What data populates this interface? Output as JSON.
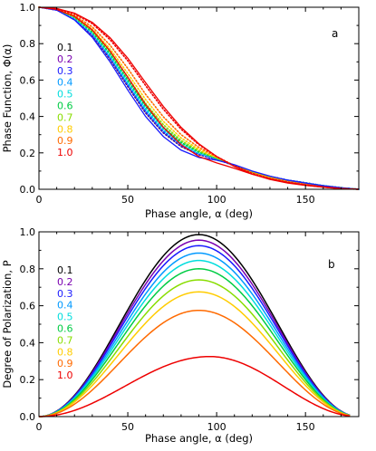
{
  "chart_data": [
    {
      "panel_letter": "a",
      "type": "line",
      "xlabel": "Phase angle, α (deg)",
      "ylabel": "Phase Function, Φ(α)",
      "xlim": [
        0,
        180
      ],
      "ylim": [
        0.0,
        1.0
      ],
      "xticks": [
        0,
        50,
        100,
        150
      ],
      "yticks": [
        0.0,
        0.2,
        0.4,
        0.6,
        0.8,
        1.0
      ],
      "ytick_labels": [
        "0.0",
        "0.2",
        "0.4",
        "0.6",
        "0.8",
        "1.0"
      ],
      "legend_placement": "left",
      "x": [
        0,
        10,
        20,
        30,
        40,
        50,
        60,
        70,
        80,
        90,
        100,
        110,
        120,
        130,
        140,
        150,
        160,
        170,
        180
      ],
      "series": [
        {
          "name": "0.1",
          "color": "#000000",
          "dotted_values": [
            1.0,
            0.985,
            0.935,
            0.845,
            0.715,
            0.565,
            0.42,
            0.31,
            0.235,
            0.19,
            0.165,
            0.13,
            0.095,
            0.07,
            0.05,
            0.035,
            0.02,
            0.008,
            0.0
          ]
        },
        {
          "name": "0.2",
          "color": "#7a00b0",
          "dotted_values": [
            1.0,
            0.985,
            0.936,
            0.847,
            0.718,
            0.568,
            0.423,
            0.312,
            0.237,
            0.191,
            0.165,
            0.13,
            0.095,
            0.07,
            0.05,
            0.035,
            0.02,
            0.008,
            0.0
          ]
        },
        {
          "name": "0.3",
          "color": "#1a1aff",
          "dotted_values": [
            1.0,
            0.986,
            0.937,
            0.85,
            0.722,
            0.573,
            0.428,
            0.316,
            0.24,
            0.193,
            0.166,
            0.13,
            0.095,
            0.07,
            0.05,
            0.035,
            0.02,
            0.008,
            0.0
          ]
        },
        {
          "name": "0.4",
          "color": "#0099ff",
          "dotted_values": [
            1.0,
            0.986,
            0.939,
            0.853,
            0.728,
            0.58,
            0.435,
            0.322,
            0.244,
            0.196,
            0.167,
            0.131,
            0.095,
            0.07,
            0.05,
            0.035,
            0.02,
            0.008,
            0.0
          ]
        },
        {
          "name": "0.5",
          "color": "#00dddd",
          "dotted_values": [
            1.0,
            0.987,
            0.941,
            0.858,
            0.735,
            0.588,
            0.444,
            0.33,
            0.25,
            0.2,
            0.168,
            0.131,
            0.095,
            0.069,
            0.049,
            0.034,
            0.02,
            0.008,
            0.0
          ]
        },
        {
          "name": "0.6",
          "color": "#00cc44",
          "dotted_values": [
            1.0,
            0.987,
            0.944,
            0.864,
            0.745,
            0.6,
            0.456,
            0.341,
            0.258,
            0.205,
            0.17,
            0.131,
            0.094,
            0.068,
            0.048,
            0.033,
            0.019,
            0.007,
            0.0
          ]
        },
        {
          "name": "0.7",
          "color": "#88dd00",
          "dotted_values": [
            1.0,
            0.988,
            0.947,
            0.872,
            0.757,
            0.616,
            0.472,
            0.355,
            0.268,
            0.211,
            0.172,
            0.131,
            0.093,
            0.067,
            0.047,
            0.032,
            0.018,
            0.007,
            0.0
          ]
        },
        {
          "name": "0.8",
          "color": "#ffcc00",
          "dotted_values": [
            1.0,
            0.989,
            0.951,
            0.88,
            0.772,
            0.636,
            0.493,
            0.373,
            0.282,
            0.219,
            0.175,
            0.131,
            0.092,
            0.065,
            0.045,
            0.03,
            0.017,
            0.006,
            0.0
          ]
        },
        {
          "name": "0.9",
          "color": "#ff6a00",
          "dotted_values": [
            1.0,
            0.99,
            0.956,
            0.892,
            0.792,
            0.664,
            0.522,
            0.398,
            0.3,
            0.23,
            0.178,
            0.13,
            0.09,
            0.062,
            0.042,
            0.028,
            0.015,
            0.005,
            0.0
          ]
        },
        {
          "name": "1.0",
          "color": "#ee0000",
          "dotted_values": [
            1.0,
            0.992,
            0.964,
            0.91,
            0.822,
            0.706,
            0.57,
            0.44,
            0.33,
            0.245,
            0.18,
            0.128,
            0.086,
            0.057,
            0.037,
            0.023,
            0.012,
            0.004,
            0.0
          ]
        }
      ],
      "solid_curves": [
        {
          "color": "#1a1aff",
          "values": [
            1.0,
            0.984,
            0.93,
            0.835,
            0.7,
            0.545,
            0.4,
            0.29,
            0.215,
            0.175,
            0.16,
            0.135,
            0.1,
            0.072,
            0.05,
            0.034,
            0.02,
            0.008,
            0.0
          ]
        },
        {
          "color": "#ee0000",
          "values": [
            1.0,
            0.988,
            0.95,
            0.875,
            0.76,
            0.615,
            0.465,
            0.34,
            0.245,
            0.18,
            0.145,
            0.115,
            0.083,
            0.058,
            0.038,
            0.024,
            0.013,
            0.004,
            0.0
          ]
        },
        {
          "color": "#ee0000",
          "values": [
            1.0,
            0.993,
            0.968,
            0.917,
            0.833,
            0.72,
            0.586,
            0.455,
            0.34,
            0.25,
            0.18,
            0.125,
            0.083,
            0.054,
            0.034,
            0.021,
            0.011,
            0.003,
            0.0
          ]
        }
      ]
    },
    {
      "panel_letter": "b",
      "type": "line",
      "xlabel": "Phase angle, α (deg)",
      "ylabel": "Degree of Polarization, P",
      "xlim": [
        0,
        180
      ],
      "ylim": [
        0.0,
        1.0
      ],
      "xticks": [
        0,
        50,
        100,
        150
      ],
      "yticks": [
        0.0,
        0.2,
        0.4,
        0.6,
        0.8,
        1.0
      ],
      "ytick_labels": [
        "0.0",
        "0.2",
        "0.4",
        "0.6",
        "0.8",
        "1.0"
      ],
      "legend_placement": "left",
      "series": [
        {
          "name": "0.1",
          "color": "#000000",
          "peak": 0.985,
          "peak_x": 90
        },
        {
          "name": "0.2",
          "color": "#7a00b0",
          "peak": 0.955,
          "peak_x": 90
        },
        {
          "name": "0.3",
          "color": "#1a1aff",
          "peak": 0.925,
          "peak_x": 90
        },
        {
          "name": "0.4",
          "color": "#0099ff",
          "peak": 0.885,
          "peak_x": 90
        },
        {
          "name": "0.5",
          "color": "#00dddd",
          "peak": 0.845,
          "peak_x": 90
        },
        {
          "name": "0.6",
          "color": "#00cc44",
          "peak": 0.8,
          "peak_x": 90
        },
        {
          "name": "0.7",
          "color": "#88dd00",
          "peak": 0.74,
          "peak_x": 90
        },
        {
          "name": "0.8",
          "color": "#ffcc00",
          "peak": 0.675,
          "peak_x": 90
        },
        {
          "name": "0.9",
          "color": "#ff6a00",
          "peak": 0.575,
          "peak_x": 90
        },
        {
          "name": "1.0",
          "color": "#ee0000",
          "peak": 0.325,
          "peak_x": 96
        }
      ]
    }
  ]
}
